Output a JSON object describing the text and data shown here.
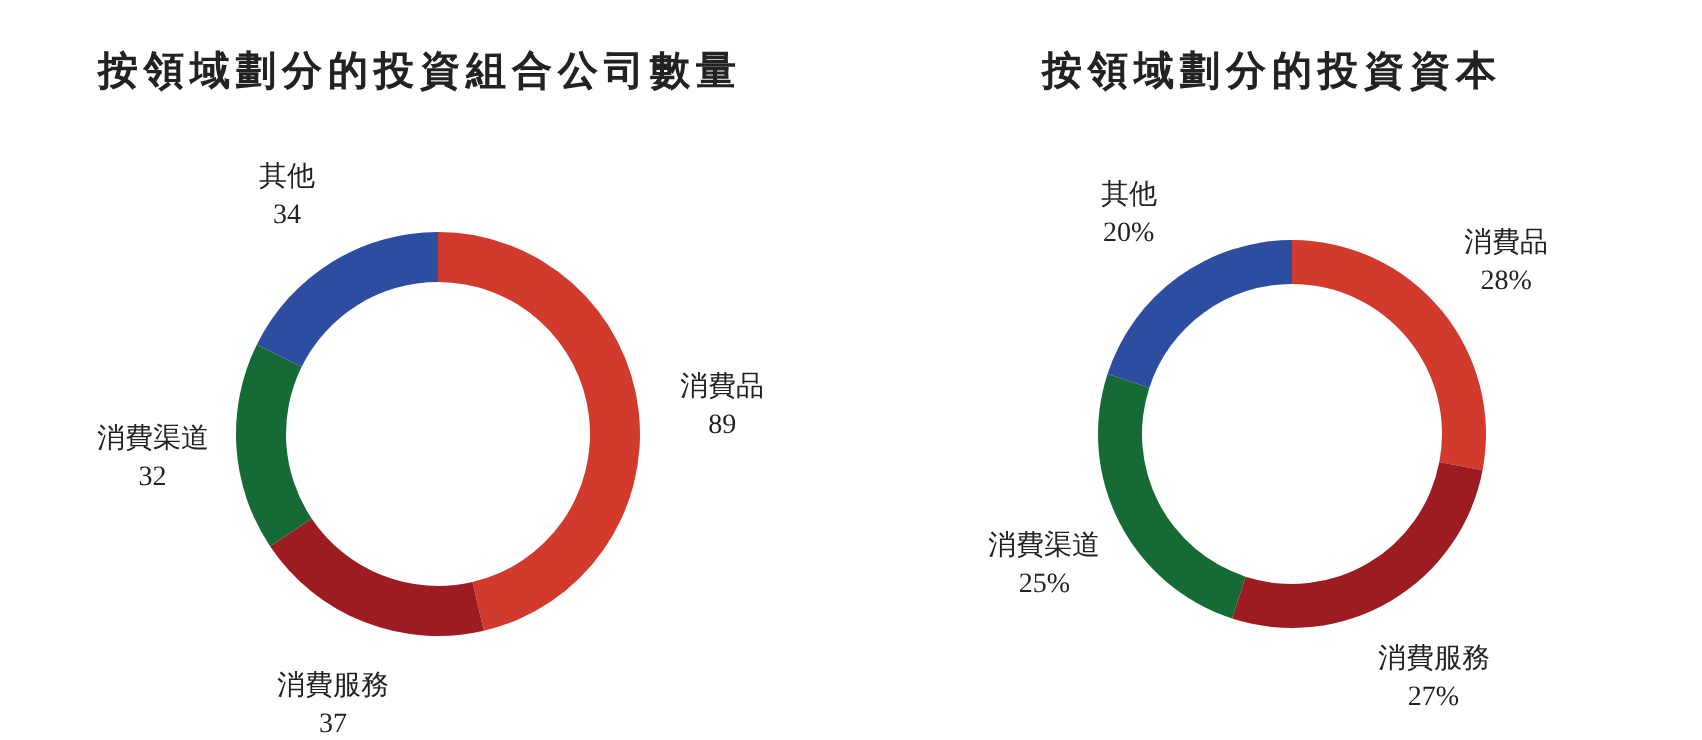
{
  "chart_data": [
    {
      "type": "donut",
      "title": "按領域劃分的投資組合公司數量",
      "categories": [
        "消費品",
        "消費服務",
        "消費渠道",
        "其他"
      ],
      "values": [
        89,
        37,
        32,
        34
      ],
      "colors": [
        "#d13a2c",
        "#9c1c22",
        "#166a35",
        "#2d4da0"
      ],
      "data_labels": true
    },
    {
      "type": "donut",
      "title": "按領域劃分的投資資本",
      "categories": [
        "消費品",
        "消費服務",
        "消費渠道",
        "其他"
      ],
      "values": [
        28,
        27,
        25,
        20
      ],
      "colors": [
        "#d13a2c",
        "#9c1c22",
        "#166a35",
        "#2d4da0"
      ],
      "value_labels": [
        "28%",
        "27%",
        "25%",
        "20%"
      ]
    }
  ]
}
